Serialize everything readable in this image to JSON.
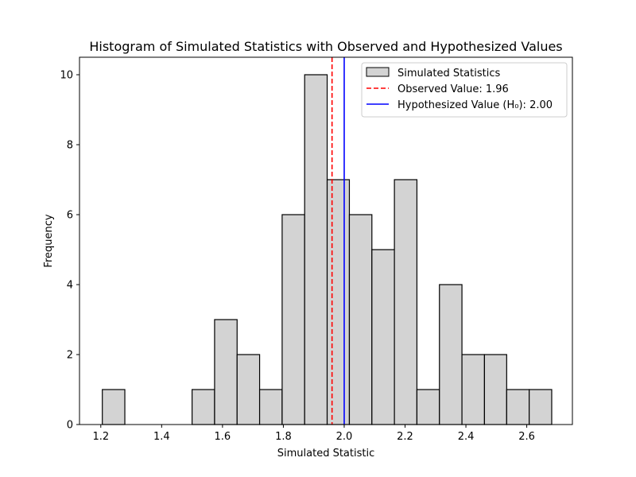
{
  "chart_data": {
    "type": "bar",
    "title": "Histogram of Simulated Statistics with Observed and Hypothesized Values",
    "xlabel": "Simulated Statistic",
    "ylabel": "Frequency",
    "xlim": [
      1.13,
      2.75
    ],
    "ylim": [
      0,
      10.5
    ],
    "xticks": [
      1.2,
      1.4,
      1.6,
      1.8,
      2.0,
      2.2,
      2.4,
      2.6
    ],
    "xtick_labels": [
      "1.2",
      "1.4",
      "1.6",
      "1.8",
      "2.0",
      "2.2",
      "2.4",
      "2.6"
    ],
    "yticks": [
      0,
      2,
      4,
      6,
      8,
      10
    ],
    "ytick_labels": [
      "0",
      "2",
      "4",
      "6",
      "8",
      "10"
    ],
    "bins": [
      {
        "x0": 1.205,
        "x1": 1.279,
        "count": 1
      },
      {
        "x0": 1.279,
        "x1": 1.353,
        "count": 0
      },
      {
        "x0": 1.353,
        "x1": 1.427,
        "count": 0
      },
      {
        "x0": 1.427,
        "x1": 1.5,
        "count": 0
      },
      {
        "x0": 1.5,
        "x1": 1.574,
        "count": 1
      },
      {
        "x0": 1.574,
        "x1": 1.648,
        "count": 3
      },
      {
        "x0": 1.648,
        "x1": 1.722,
        "count": 2
      },
      {
        "x0": 1.722,
        "x1": 1.796,
        "count": 1
      },
      {
        "x0": 1.796,
        "x1": 1.87,
        "count": 6
      },
      {
        "x0": 1.87,
        "x1": 1.944,
        "count": 10
      },
      {
        "x0": 1.944,
        "x1": 2.017,
        "count": 7
      },
      {
        "x0": 2.017,
        "x1": 2.091,
        "count": 6
      },
      {
        "x0": 2.091,
        "x1": 2.165,
        "count": 5
      },
      {
        "x0": 2.165,
        "x1": 2.239,
        "count": 7
      },
      {
        "x0": 2.239,
        "x1": 2.313,
        "count": 1
      },
      {
        "x0": 2.313,
        "x1": 2.387,
        "count": 4
      },
      {
        "x0": 2.387,
        "x1": 2.461,
        "count": 2
      },
      {
        "x0": 2.461,
        "x1": 2.534,
        "count": 2
      },
      {
        "x0": 2.534,
        "x1": 2.608,
        "count": 1
      },
      {
        "x0": 2.608,
        "x1": 2.682,
        "count": 1
      }
    ],
    "bar_color": "#d3d3d3",
    "bar_edge_color": "#000000",
    "lines": [
      {
        "name": "Observed Value: 1.96",
        "x": 1.96,
        "color": "#ff0000",
        "style": "dashed"
      },
      {
        "name": "Hypothesized Value (H₀): 2.00",
        "x": 2.0,
        "color": "#0000ff",
        "style": "solid"
      }
    ],
    "legend": {
      "placement": "top-right",
      "entries": [
        "Simulated Statistics",
        "Observed Value: 1.96",
        "Hypothesized Value (H₀): 2.00"
      ]
    },
    "grid": false
  }
}
